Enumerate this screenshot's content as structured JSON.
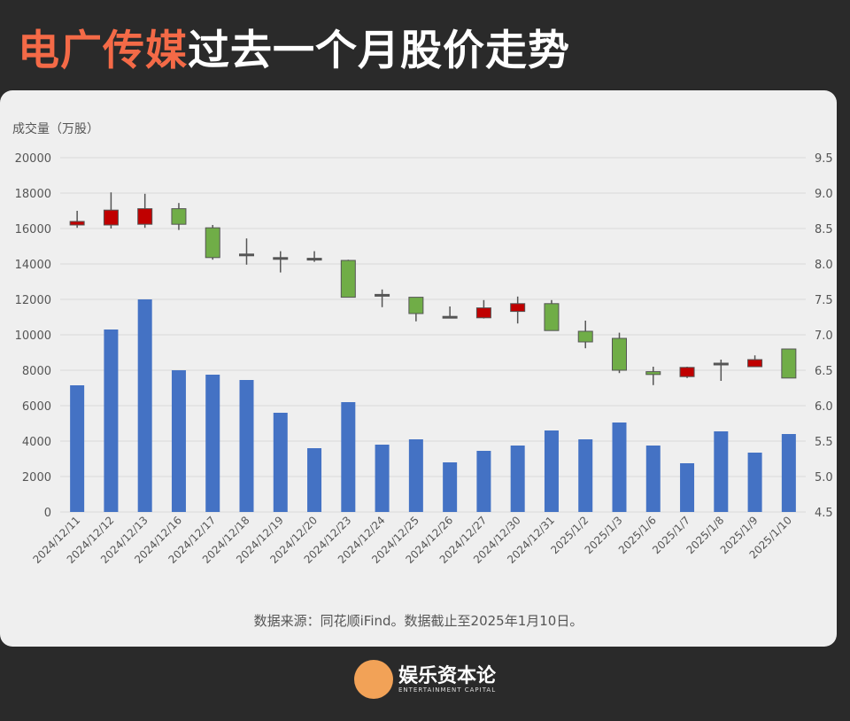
{
  "title": {
    "highlight": "电广传媒",
    "rest": "过去一个月股价走势"
  },
  "chart_data": {
    "type": "candlestick+bar",
    "ylabel": "成交量（万股）",
    "ylim": [
      0,
      20000
    ],
    "yticks": [
      0,
      2000,
      4000,
      6000,
      8000,
      10000,
      12000,
      14000,
      16000,
      18000,
      20000
    ],
    "y2lim": [
      4.5,
      9.5
    ],
    "y2ticks": [
      "4.5",
      "5.0",
      "5.5",
      "6.0",
      "6.5",
      "7.0",
      "7.5",
      "8.0",
      "8.5",
      "9.0",
      "9.5"
    ],
    "grid": true,
    "categories": [
      "2024/12/11",
      "2024/12/12",
      "2024/12/13",
      "2024/12/16",
      "2024/12/17",
      "2024/12/18",
      "2024/12/19",
      "2024/12/20",
      "2024/12/23",
      "2024/12/24",
      "2024/12/25",
      "2024/12/26",
      "2024/12/27",
      "2024/12/30",
      "2024/12/31",
      "2025/1/2",
      "2025/1/3",
      "2025/1/6",
      "2025/1/7",
      "2025/1/8",
      "2025/1/9",
      "2025/1/10"
    ],
    "volume": [
      7150,
      10300,
      12000,
      8000,
      7750,
      7450,
      5600,
      3600,
      6200,
      3800,
      4100,
      2800,
      3450,
      3750,
      4600,
      4100,
      5050,
      3750,
      2750,
      4550,
      3350,
      4400
    ],
    "ohlc": [
      [
        8.55,
        8.75,
        8.51,
        8.6
      ],
      [
        8.55,
        9.01,
        8.5,
        8.76
      ],
      [
        8.56,
        8.99,
        8.51,
        8.78
      ],
      [
        8.78,
        8.86,
        8.48,
        8.56
      ],
      [
        8.51,
        8.55,
        8.06,
        8.09
      ],
      [
        8.14,
        8.36,
        7.99,
        8.14
      ],
      [
        8.07,
        8.18,
        7.88,
        8.09
      ],
      [
        8.08,
        8.18,
        8.03,
        8.08
      ],
      [
        8.05,
        8.06,
        7.53,
        7.53
      ],
      [
        7.56,
        7.64,
        7.39,
        7.57
      ],
      [
        7.53,
        7.53,
        7.19,
        7.3
      ],
      [
        7.26,
        7.4,
        7.26,
        7.26
      ],
      [
        7.24,
        7.49,
        7.23,
        7.38
      ],
      [
        7.33,
        7.54,
        7.16,
        7.44
      ],
      [
        7.44,
        7.49,
        7.06,
        7.06
      ],
      [
        7.05,
        7.2,
        6.81,
        6.9
      ],
      [
        6.95,
        7.03,
        6.46,
        6.5
      ],
      [
        6.48,
        6.55,
        6.29,
        6.44
      ],
      [
        6.41,
        6.55,
        6.39,
        6.54
      ],
      [
        6.59,
        6.65,
        6.35,
        6.6
      ],
      [
        6.55,
        6.71,
        6.55,
        6.65
      ],
      [
        6.8,
        6.8,
        6.39,
        6.39
      ]
    ],
    "colors": {
      "volume": "#4472c4",
      "up": "#c00000",
      "down": "#70ad47",
      "grid": "#d9d9d9"
    }
  },
  "footer": "数据来源：同花顺iFind。数据截止至2025年1月10日。",
  "brand": {
    "name": "娱乐资本论",
    "sub": "ENTERTAINMENT CAPITAL"
  }
}
